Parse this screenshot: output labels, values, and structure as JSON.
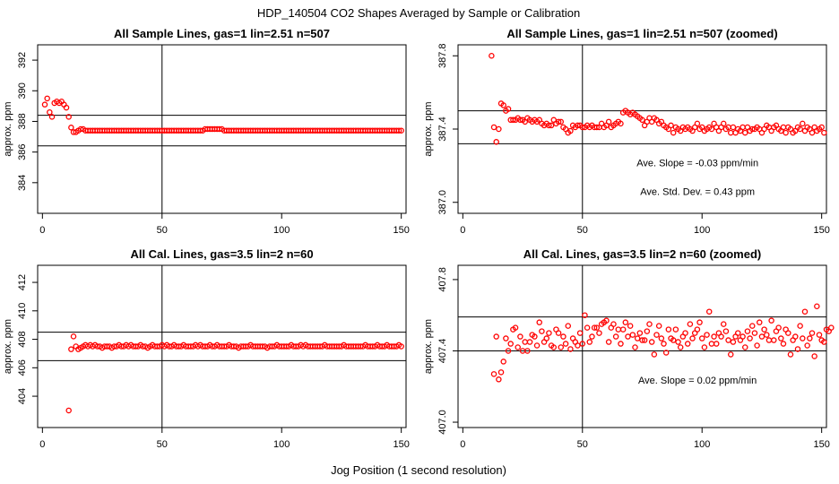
{
  "figure": {
    "title": "HDP_140504  CO2 Shapes Averaged by Sample or Calibration",
    "xlabel": "Jog Position (1 second resolution)"
  },
  "colors": {
    "points": "#ff0000",
    "lines": "#000000",
    "text": "#000000"
  },
  "chart_data": [
    {
      "type": "scatter",
      "title": "All Sample Lines, gas=1 lin=2.51 n=507",
      "xlabel": "",
      "ylabel": "approx. ppm",
      "xlim": [
        -2,
        152
      ],
      "ylim": [
        382,
        393
      ],
      "xticks": [
        "0",
        "50",
        "100",
        "150"
      ],
      "xtick_values": [
        0,
        50,
        100,
        150
      ],
      "yticks": [
        "384",
        "386",
        "388",
        "390",
        "392"
      ],
      "ytick_values": [
        384,
        386,
        388,
        390,
        392
      ],
      "vline": 50,
      "hlines": [
        388.4,
        386.4
      ],
      "annotations": [],
      "series": [
        {
          "x_start": 1,
          "x_step": 1,
          "y": [
            389.1,
            389.5,
            388.6,
            388.3,
            389.2,
            389.3,
            389.2,
            389.3,
            389.1,
            388.9,
            388.3,
            387.6,
            387.3,
            387.3,
            387.4,
            387.5,
            387.5,
            387.4,
            387.4,
            387.4,
            387.4,
            387.4,
            387.4,
            387.4,
            387.4,
            387.4,
            387.4,
            387.4,
            387.4,
            387.4,
            387.4,
            387.4,
            387.4,
            387.4,
            387.4,
            387.4,
            387.4,
            387.4,
            387.4,
            387.4,
            387.4,
            387.4,
            387.4,
            387.4,
            387.4,
            387.4,
            387.4,
            387.4,
            387.4,
            387.4,
            387.4,
            387.4,
            387.4,
            387.4,
            387.4,
            387.4,
            387.4,
            387.4,
            387.4,
            387.4,
            387.4,
            387.4,
            387.4,
            387.4,
            387.4,
            387.4,
            387.4,
            387.5,
            387.5,
            387.5,
            387.5,
            387.5,
            387.5,
            387.5,
            387.5,
            387.4,
            387.4,
            387.4,
            387.4,
            387.4,
            387.4,
            387.4,
            387.4,
            387.4,
            387.4,
            387.4,
            387.4,
            387.4,
            387.4,
            387.4,
            387.4,
            387.4,
            387.4,
            387.4,
            387.4,
            387.4,
            387.4,
            387.4,
            387.4,
            387.4,
            387.4,
            387.4,
            387.4,
            387.4,
            387.4,
            387.4,
            387.4,
            387.4,
            387.4,
            387.4,
            387.4,
            387.4,
            387.4,
            387.4,
            387.4,
            387.4,
            387.4,
            387.4,
            387.4,
            387.4,
            387.4,
            387.4,
            387.4,
            387.4,
            387.4,
            387.4,
            387.4,
            387.4,
            387.4,
            387.4,
            387.4,
            387.4,
            387.4,
            387.4,
            387.4,
            387.4,
            387.4,
            387.4,
            387.4,
            387.4,
            387.4,
            387.4,
            387.4,
            387.4,
            387.4,
            387.4,
            387.4,
            387.4,
            387.4,
            387.4
          ]
        }
      ]
    },
    {
      "type": "scatter",
      "title": "All Sample Lines, gas=1 lin=2.51 n=507 (zoomed)",
      "xlabel": "",
      "ylabel": "approx. ppm",
      "xlim": [
        -2,
        152
      ],
      "ylim": [
        386.94,
        387.86
      ],
      "xticks": [
        "0",
        "50",
        "100",
        "150"
      ],
      "xtick_values": [
        0,
        50,
        100,
        150
      ],
      "yticks": [
        "387.0",
        "387.4",
        "387.8"
      ],
      "ytick_values": [
        387.0,
        387.4,
        387.8
      ],
      "vline": 50,
      "hlines": [
        387.5,
        387.32
      ],
      "annotations": [
        "Ave. Slope =  -0.03  ppm/min",
        "Ave. Std. Dev. =  0.43  ppm"
      ],
      "series": [
        {
          "x_start": 12,
          "x_step": 1,
          "y": [
            387.8,
            387.41,
            387.33,
            387.4,
            387.54,
            387.53,
            387.5,
            387.51,
            387.45,
            387.45,
            387.45,
            387.46,
            387.45,
            387.45,
            387.44,
            387.46,
            387.45,
            387.44,
            387.45,
            387.44,
            387.45,
            387.43,
            387.42,
            387.43,
            387.42,
            387.42,
            387.45,
            387.43,
            387.44,
            387.44,
            387.41,
            387.4,
            387.38,
            387.39,
            387.42,
            387.41,
            387.42,
            387.42,
            387.41,
            387.41,
            387.42,
            387.41,
            387.42,
            387.41,
            387.41,
            387.41,
            387.43,
            387.41,
            387.42,
            387.44,
            387.41,
            387.42,
            387.43,
            387.44,
            387.43,
            387.49,
            387.5,
            387.49,
            387.48,
            387.49,
            387.48,
            387.47,
            387.46,
            387.45,
            387.42,
            387.44,
            387.46,
            387.44,
            387.46,
            387.45,
            387.43,
            387.44,
            387.42,
            387.41,
            387.4,
            387.42,
            387.38,
            387.41,
            387.4,
            387.39,
            387.41,
            387.4,
            387.41,
            387.4,
            387.39,
            387.41,
            387.43,
            387.4,
            387.41,
            387.39,
            387.4,
            387.41,
            387.4,
            387.43,
            387.41,
            387.39,
            387.41,
            387.43,
            387.4,
            387.41,
            387.38,
            387.41,
            387.38,
            387.4,
            387.39,
            387.41,
            387.38,
            387.41,
            387.39,
            387.4,
            387.4,
            387.41,
            387.4,
            387.38,
            387.4,
            387.42,
            387.41,
            387.39,
            387.41,
            387.42,
            387.4,
            387.39,
            387.41,
            387.38,
            387.41,
            387.4,
            387.38,
            387.39,
            387.41,
            387.4,
            387.43,
            387.39,
            387.41,
            387.4,
            387.38,
            387.41,
            387.39,
            387.4,
            387.41,
            387.38
          ]
        }
      ]
    },
    {
      "type": "scatter",
      "title": "All Cal. Lines, gas=3.5 lin=2 n=60",
      "xlabel": "",
      "ylabel": "approx. ppm",
      "xlim": [
        -2,
        152
      ],
      "ylim": [
        401.8,
        413.2
      ],
      "xticks": [
        "0",
        "50",
        "100",
        "150"
      ],
      "xtick_values": [
        0,
        50,
        100,
        150
      ],
      "yticks": [
        "404",
        "406",
        "408",
        "410",
        "412"
      ],
      "ytick_values": [
        404,
        406,
        408,
        410,
        412
      ],
      "vline": 50,
      "hlines": [
        408.5,
        406.5
      ],
      "annotations": [],
      "series": [
        {
          "x_start": 11,
          "x_step": 1,
          "y": [
            403,
            407.3,
            408.2,
            407.5,
            407.3,
            407.4,
            407.5,
            407.6,
            407.5,
            407.6,
            407.5,
            407.6,
            407.5,
            407.5,
            407.4,
            407.5,
            407.5,
            407.5,
            407.4,
            407.5,
            407.5,
            407.6,
            407.5,
            407.5,
            407.6,
            407.5,
            407.6,
            407.5,
            407.5,
            407.5,
            407.6,
            407.5,
            407.5,
            407.4,
            407.5,
            407.6,
            407.5,
            407.5,
            407.5,
            407.6,
            407.5,
            407.6,
            407.5,
            407.5,
            407.6,
            407.5,
            407.5,
            407.5,
            407.6,
            407.5,
            407.5,
            407.5,
            407.5,
            407.6,
            407.5,
            407.6,
            407.5,
            407.5,
            407.5,
            407.6,
            407.5,
            407.5,
            407.6,
            407.5,
            407.5,
            407.5,
            407.5,
            407.6,
            407.5,
            407.5,
            407.5,
            407.4,
            407.5,
            407.5,
            407.5,
            407.5,
            407.6,
            407.5,
            407.5,
            407.5,
            407.5,
            407.5,
            407.5,
            407.4,
            407.5,
            407.5,
            407.5,
            407.6,
            407.5,
            407.5,
            407.5,
            407.5,
            407.5,
            407.6,
            407.5,
            407.5,
            407.5,
            407.6,
            407.5,
            407.6,
            407.5,
            407.5,
            407.5,
            407.5,
            407.5,
            407.5,
            407.5,
            407.6,
            407.5,
            407.5,
            407.5,
            407.5,
            407.5,
            407.5,
            407.5,
            407.6,
            407.5,
            407.5,
            407.5,
            407.5,
            407.5,
            407.5,
            407.5,
            407.5,
            407.6,
            407.5,
            407.5,
            407.5,
            407.5,
            407.6,
            407.5,
            407.5,
            407.5,
            407.6,
            407.5,
            407.5,
            407.5,
            407.5,
            407.6,
            407.5
          ]
        }
      ]
    },
    {
      "type": "scatter",
      "title": "All Cal. Lines, gas=3.5 lin=2 n=60 (zoomed)",
      "xlabel": "",
      "ylabel": "approx. ppm",
      "xlim": [
        -2,
        152
      ],
      "ylim": [
        406.97,
        407.88
      ],
      "xticks": [
        "0",
        "50",
        "100",
        "150"
      ],
      "xtick_values": [
        0,
        50,
        100,
        150
      ],
      "yticks": [
        "407.0",
        "407.4",
        "407.8"
      ],
      "ytick_values": [
        407.0,
        407.4,
        407.8
      ],
      "vline": 50,
      "hlines": [
        407.59,
        407.4
      ],
      "annotations": [
        "Ave. Slope =  0.02  ppm/min"
      ],
      "series": [
        {
          "x_start": 13,
          "x_step": 1,
          "y": [
            407.27,
            407.48,
            407.24,
            407.28,
            407.34,
            407.47,
            407.4,
            407.44,
            407.52,
            407.53,
            407.42,
            407.48,
            407.4,
            407.45,
            407.4,
            407.45,
            407.49,
            407.48,
            407.43,
            407.56,
            407.51,
            407.45,
            407.47,
            407.5,
            407.43,
            407.42,
            407.52,
            407.5,
            407.42,
            407.48,
            407.44,
            407.54,
            407.41,
            407.47,
            407.45,
            407.43,
            407.5,
            407.44,
            407.6,
            407.53,
            407.45,
            407.48,
            407.53,
            407.53,
            407.5,
            407.55,
            407.56,
            407.57,
            407.45,
            407.53,
            407.55,
            407.48,
            407.52,
            407.44,
            407.52,
            407.56,
            407.48,
            407.54,
            407.49,
            407.42,
            407.47,
            407.5,
            407.46,
            407.46,
            407.51,
            407.55,
            407.45,
            407.38,
            407.49,
            407.54,
            407.47,
            407.44,
            407.39,
            407.52,
            407.47,
            407.46,
            407.52,
            407.45,
            407.42,
            407.48,
            407.5,
            407.44,
            407.55,
            407.47,
            407.5,
            407.52,
            407.56,
            407.47,
            407.42,
            407.49,
            407.62,
            407.44,
            407.48,
            407.44,
            407.5,
            407.48,
            407.55,
            407.51,
            407.46,
            407.38,
            407.45,
            407.48,
            407.5,
            407.46,
            407.48,
            407.42,
            407.51,
            407.47,
            407.54,
            407.5,
            407.43,
            407.56,
            407.48,
            407.52,
            407.49,
            407.46,
            407.57,
            407.46,
            407.51,
            407.53,
            407.47,
            407.44,
            407.52,
            407.5,
            407.38,
            407.46,
            407.48,
            407.41,
            407.54,
            407.47,
            407.62,
            407.43,
            407.47,
            407.5,
            407.37,
            407.65,
            407.49,
            407.46,
            407.45,
            407.52,
            407.51,
            407.53
          ]
        }
      ]
    }
  ]
}
